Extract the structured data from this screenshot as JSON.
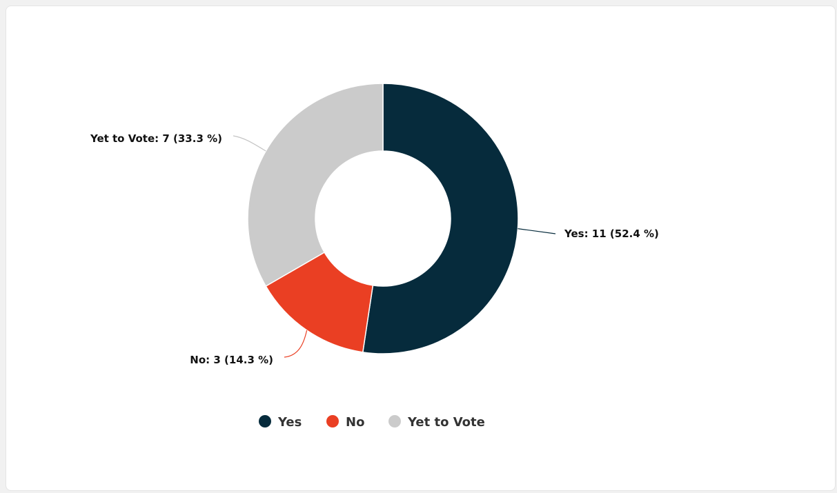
{
  "chart_data": {
    "type": "pie",
    "donut": true,
    "slices": [
      {
        "name": "Yes",
        "value": 11,
        "percent": 52.4,
        "color": "#062b3c",
        "label": "Yes: 11 (52.4 %)"
      },
      {
        "name": "No",
        "value": 3,
        "percent": 14.3,
        "color": "#ea3f23",
        "label": "No: 3 (14.3 %)"
      },
      {
        "name": "Yet to Vote",
        "value": 7,
        "percent": 33.3,
        "color": "#cbcbcb",
        "label": "Yet to Vote: 7 (33.3 %)"
      }
    ],
    "legend": {
      "placement": "bottom-center",
      "items": [
        "Yes",
        "No",
        "Yet to Vote"
      ]
    }
  }
}
